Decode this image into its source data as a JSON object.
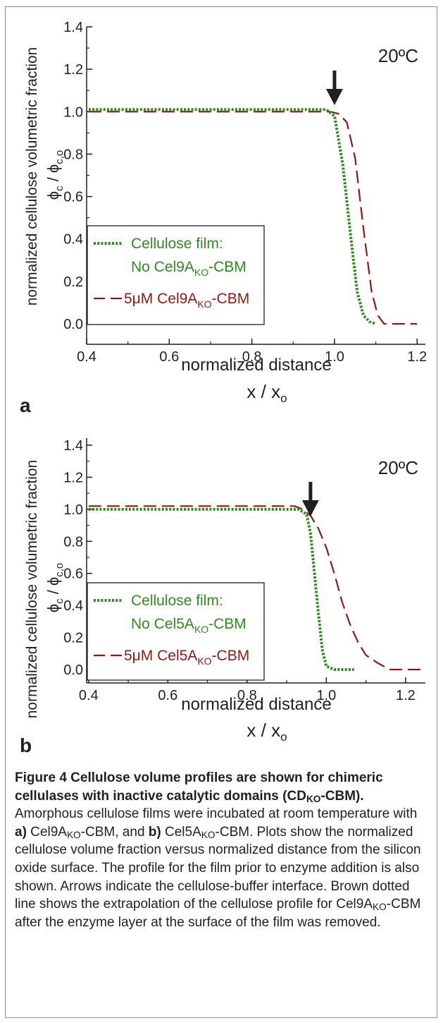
{
  "chart_data": [
    {
      "panel_letter": "a",
      "type": "line",
      "temperature_label": "20ºC",
      "ylabel": "normalized cellulose volumetric fraction",
      "ylabel2": "ϕc / ϕc,o",
      "xlabel": "normalized distance",
      "xlabel2": "x / xo",
      "xlim": [
        0.4,
        1.22
      ],
      "ylim": [
        -0.08,
        1.42
      ],
      "xticks": [
        "0.4",
        "0.6",
        "0.8",
        "1.0",
        "1.2"
      ],
      "yticks": [
        "0.0",
        "0.2",
        "0.4",
        "0.6",
        "0.8",
        "1.0",
        "1.2",
        "1.4"
      ],
      "grid": false,
      "legend_position": "lower-left",
      "arrow_x": 1.0,
      "series": [
        {
          "legend_line1": "Cellulose film:",
          "legend_line2": "No Cel9A",
          "legend_sub": "KO",
          "legend_suffix": "-CBM",
          "color": "#2e8b1f",
          "style": "dotted",
          "x": [
            0.405,
            0.98,
            1.0,
            1.02,
            1.04,
            1.055,
            1.07,
            1.085,
            1.1
          ],
          "y": [
            1.01,
            1.01,
            0.98,
            0.75,
            0.4,
            0.15,
            0.04,
            0.01,
            0.0
          ]
        },
        {
          "legend_line1": "5μM Cel9A",
          "legend_sub": "KO",
          "legend_suffix": "-CBM",
          "color": "#8b1a12",
          "style": "dashed",
          "x": [
            0.405,
            0.99,
            1.01,
            1.03,
            1.05,
            1.07,
            1.09,
            1.105,
            1.12,
            1.2
          ],
          "y": [
            1.0,
            1.0,
            0.99,
            0.95,
            0.78,
            0.45,
            0.15,
            0.04,
            0.0,
            0.0
          ]
        }
      ]
    },
    {
      "panel_letter": "b",
      "type": "line",
      "temperature_label": "20ºC",
      "ylabel": "normalized cellulose volumetric fraction",
      "ylabel2": "ϕc / ϕc,o",
      "xlabel": "normalized distance",
      "xlabel2": "x / xo",
      "xlim": [
        0.395,
        1.25
      ],
      "ylim": [
        -0.08,
        1.42
      ],
      "xticks": [
        "0.4",
        "0.6",
        "0.8",
        "1.0",
        "1.2"
      ],
      "yticks": [
        "0.0",
        "0.2",
        "0.4",
        "0.6",
        "0.8",
        "1.0",
        "1.2",
        "1.4"
      ],
      "grid": false,
      "legend_position": "lower-left",
      "arrow_x": 0.96,
      "series": [
        {
          "legend_line1": "Cellulose film:",
          "legend_line2": "No Cel5A",
          "legend_sub": "KO",
          "legend_suffix": "-CBM",
          "color": "#2e8b1f",
          "style": "dotted",
          "x": [
            0.4,
            0.93,
            0.95,
            0.96,
            0.97,
            0.98,
            0.99,
            1.0,
            1.02,
            1.07
          ],
          "y": [
            1.0,
            1.0,
            0.97,
            0.85,
            0.6,
            0.35,
            0.12,
            0.02,
            0.0,
            0.0
          ]
        },
        {
          "legend_line1": "5μM Cel5A",
          "legend_sub": "KO",
          "legend_suffix": "-CBM",
          "color": "#8b1a12",
          "style": "dashed",
          "x": [
            0.4,
            0.92,
            0.94,
            0.96,
            0.98,
            1.0,
            1.02,
            1.04,
            1.06,
            1.08,
            1.1,
            1.13,
            1.16,
            1.24
          ],
          "y": [
            1.02,
            1.02,
            1.0,
            0.96,
            0.88,
            0.76,
            0.6,
            0.42,
            0.28,
            0.17,
            0.09,
            0.04,
            0.0,
            0.0
          ]
        }
      ]
    }
  ],
  "caption": {
    "title": "Figure 4 Cellulose volume profiles are shown for chimeric cellulases with inactive catalytic domains (CD",
    "title_sub": "KO",
    "title_end": "-CBM).",
    "body_1": " Amorphous cellulose films were incubated at room temperature with ",
    "a_label": "a)",
    "body_2": " Cel9A",
    "sub_ko_1": "KO",
    "body_3": "-CBM, and ",
    "b_label": "b)",
    "body_4": " Cel5A",
    "sub_ko_2": "KO",
    "body_5": "-CBM. Plots show the normalized cellulose volume fraction versus normalized distance from the silicon oxide surface. The profile for the film prior to enzyme addition is also shown. Arrows indicate the cellulose-buffer interface. Brown dotted line shows the extrapolation of the cellulose profile for Cel9A",
    "sub_ko_3": "KO",
    "body_6": "-CBM after the enzyme layer at the surface of the film was removed."
  }
}
